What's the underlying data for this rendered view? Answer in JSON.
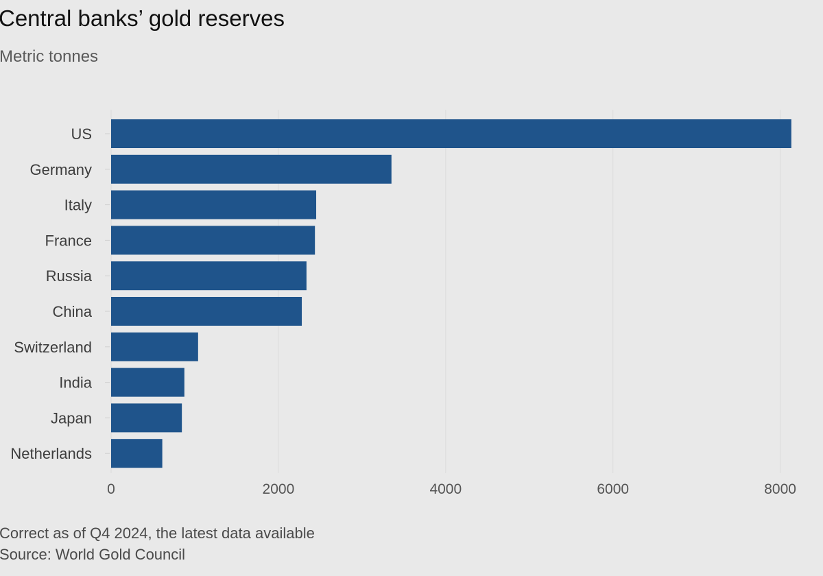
{
  "title": "Central banks’ gold reserves",
  "subtitle": "Metric tonnes",
  "footnote": "Correct as of Q4 2024, the latest data available",
  "source": "Source: World Gold Council",
  "colors": {
    "bar": "#1f548b",
    "background": "#e9e9e9",
    "grid": "#dcdcdc"
  },
  "chart_data": {
    "type": "bar",
    "orientation": "horizontal",
    "categories": [
      "US",
      "Germany",
      "Italy",
      "France",
      "Russia",
      "China",
      "Switzerland",
      "India",
      "Japan",
      "Netherlands"
    ],
    "values": [
      8133,
      3352,
      2452,
      2437,
      2336,
      2280,
      1040,
      876,
      846,
      612
    ],
    "xticks": [
      0,
      2000,
      4000,
      6000,
      8000
    ],
    "xlim": [
      0,
      8200
    ],
    "grid": true,
    "legend": "none"
  }
}
